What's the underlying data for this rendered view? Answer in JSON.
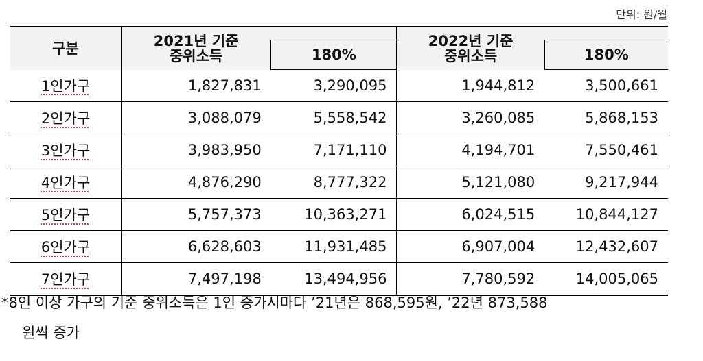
{
  "unit": "단위: 원/월",
  "table": {
    "header": {
      "category": "구분",
      "col_2021": "2021년 기준\n중위소득",
      "pct_2021": "180%",
      "col_2022": "2022년 기준\n중위소득",
      "pct_2022": "180%"
    },
    "rows": [
      [
        "1인가구",
        "1,827,831",
        "3,290,095",
        "1,944,812",
        "3,500,661"
      ],
      [
        "2인가구",
        "3,088,079",
        "5,558,542",
        "3,260,085",
        "5,868,153"
      ],
      [
        "3인가구",
        "3,983,950",
        "7,171,110",
        "4,194,701",
        "7,550,461"
      ],
      [
        "4인가구",
        "4,876,290",
        "8,777,322",
        "5,121,080",
        "9,217,944"
      ],
      [
        "5인가구",
        "5,757,373",
        "10,363,271",
        "6,024,515",
        "10,844,127"
      ],
      [
        "6인가구",
        "6,628,603",
        "11,931,485",
        "6,907,004",
        "12,432,607"
      ],
      [
        "7인가구",
        "7,497,198",
        "13,494,956",
        "7,780,592",
        "14,005,065"
      ]
    ]
  },
  "footnote": [
    "*8인 이상 가구의 기준 중위소득은 1인 증가시마다 ’21년은 868,595원, ’22년 873,588",
    "원씩 증가"
  ]
}
